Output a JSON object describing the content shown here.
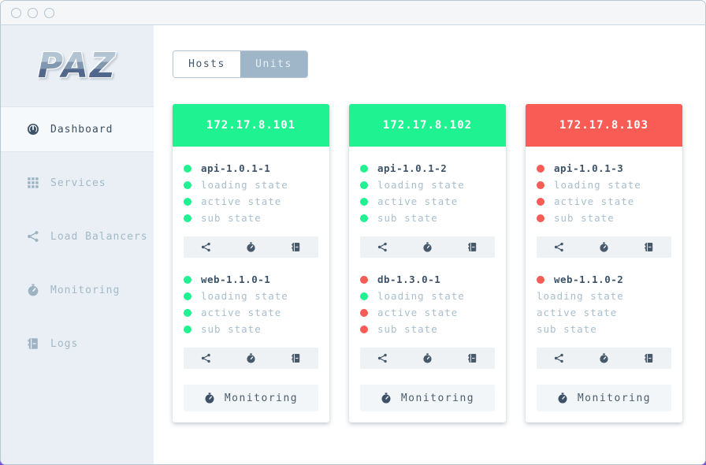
{
  "window": {
    "traffic_lights": [
      "close",
      "minimize",
      "maximize"
    ]
  },
  "sidebar": {
    "logo_text": "PAZ",
    "items": [
      {
        "label": "Dashboard",
        "icon": "gauge-icon",
        "active": true
      },
      {
        "label": "Services",
        "icon": "grid-icon",
        "active": false
      },
      {
        "label": "Load Balancers",
        "icon": "share-icon",
        "active": false
      },
      {
        "label": "Monitoring",
        "icon": "stopwatch-icon",
        "active": false
      },
      {
        "label": "Logs",
        "icon": "journal-icon",
        "active": false
      }
    ]
  },
  "view_toggle": {
    "options": [
      {
        "label": "Hosts",
        "selected": true
      },
      {
        "label": "Units",
        "selected": false
      }
    ]
  },
  "unit_action_icons": [
    "share-icon",
    "stopwatch-icon",
    "journal-icon"
  ],
  "monitoring_button_label": "Monitoring",
  "hosts": [
    {
      "address": "172.17.8.101",
      "status_color": "#1ef291",
      "units": [
        {
          "name": "api-1.0.1-1",
          "name_dot": "green",
          "states": [
            {
              "label": "loading state",
              "dot": "green"
            },
            {
              "label": "active state",
              "dot": "green"
            },
            {
              "label": "sub state",
              "dot": "green"
            }
          ]
        },
        {
          "name": "web-1.1.0-1",
          "name_dot": "green",
          "states": [
            {
              "label": "loading state",
              "dot": "green"
            },
            {
              "label": "active state",
              "dot": "green"
            },
            {
              "label": "sub state",
              "dot": "green"
            }
          ]
        }
      ]
    },
    {
      "address": "172.17.8.102",
      "status_color": "#1ef291",
      "units": [
        {
          "name": "api-1.0.1-2",
          "name_dot": "green",
          "states": [
            {
              "label": "loading state",
              "dot": "green"
            },
            {
              "label": "active state",
              "dot": "green"
            },
            {
              "label": "sub state",
              "dot": "green"
            }
          ]
        },
        {
          "name": "db-1.3.0-1",
          "name_dot": "red",
          "states": [
            {
              "label": "loading state",
              "dot": "green"
            },
            {
              "label": "active state",
              "dot": "red"
            },
            {
              "label": "sub state",
              "dot": "red"
            }
          ]
        }
      ]
    },
    {
      "address": "172.17.8.103",
      "status_color": "#f95b55",
      "units": [
        {
          "name": "api-1.0.1-3",
          "name_dot": "red",
          "states": [
            {
              "label": "loading state",
              "dot": "red"
            },
            {
              "label": "active state",
              "dot": "red"
            },
            {
              "label": "sub state",
              "dot": "red"
            }
          ]
        },
        {
          "name": "web-1.1.0-2",
          "name_dot": "red",
          "states": [
            {
              "label": "loading state",
              "dot": null
            },
            {
              "label": "active state",
              "dot": null
            },
            {
              "label": "sub state",
              "dot": null
            }
          ]
        }
      ]
    }
  ],
  "colors": {
    "up_green": "#1ef291",
    "down_red": "#f95b55",
    "accent_purple": "#7b52d6",
    "sidebar_bg": "#e9eff4"
  }
}
